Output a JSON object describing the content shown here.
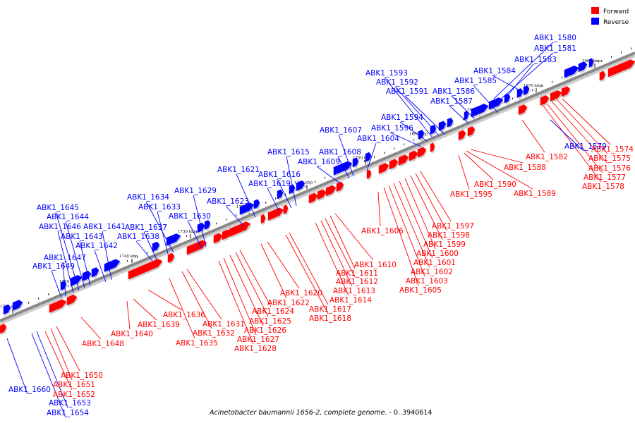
{
  "caption_genome": "Acinetobacter baumannii 1656-2, complete genome.",
  "caption_range": " - 0..3940614",
  "legend": [
    {
      "label": "Forward",
      "color": "#ff0000"
    },
    {
      "label": "Reverse",
      "color": "#0000ff"
    }
  ],
  "colors": {
    "forward": "#ff0000",
    "reverse": "#0000ff",
    "backbone": "#888888"
  },
  "ticks": [
    "1660 kbp",
    "1670 kbp",
    "1680 kbp",
    "1690 kbp",
    "1700 kbp",
    "1710 kbp",
    "1720 kbp",
    "1730 kbp",
    "1740 kbp",
    "1750 kbp",
    "1760 kbp"
  ],
  "genes_forward": [
    "ABK1_1574",
    "ABK1_1575",
    "ABK1_1576",
    "ABK1_1577",
    "ABK1_1578",
    "ABK1_1582",
    "ABK1_1588",
    "ABK1_1589",
    "ABK1_1590",
    "ABK1_1595",
    "ABK1_1597",
    "ABK1_1598",
    "ABK1_1599",
    "ABK1_1600",
    "ABK1_1601",
    "ABK1_1602",
    "ABK1_1603",
    "ABK1_1605",
    "ABK1_1606",
    "ABK1_1610",
    "ABK1_1611",
    "ABK1_1612",
    "ABK1_1613",
    "ABK1_1614",
    "ABK1_1617",
    "ABK1_1618",
    "ABK1_1620",
    "ABK1_1622",
    "ABK1_1624",
    "ABK1_1625",
    "ABK1_1626",
    "ABK1_1627",
    "ABK1_1628",
    "ABK1_1631",
    "ABK1_1632",
    "ABK1_1635",
    "ABK1_1636",
    "ABK1_1639",
    "ABK1_1640",
    "ABK1_1648",
    "ABK1_1650",
    "ABK1_1651",
    "ABK1_1652"
  ],
  "genes_reverse": [
    "ABK1_1579",
    "ABK1_1580",
    "ABK1_1581",
    "ABK1_1583",
    "ABK1_1584",
    "ABK1_1585",
    "ABK1_1586",
    "ABK1_1587",
    "ABK1_1591",
    "ABK1_1592",
    "ABK1_1593",
    "ABK1_1594",
    "ABK1_1596",
    "ABK1_1604",
    "ABK1_1607",
    "ABK1_1608",
    "ABK1_1609",
    "ABK1_1615",
    "ABK1_1616",
    "ABK1_1619",
    "ABK1_1621",
    "ABK1_1623",
    "ABK1_1629",
    "ABK1_1630",
    "ABK1_1633",
    "ABK1_1634",
    "ABK1_1637",
    "ABK1_1638",
    "ABK1_1641",
    "ABK1_1642",
    "ABK1_1643",
    "ABK1_1644",
    "ABK1_1645",
    "ABK1_1646",
    "ABK1_1647",
    "ABK1_1649",
    "ABK1_1653",
    "ABK1_1654",
    "ABK1_1660"
  ]
}
